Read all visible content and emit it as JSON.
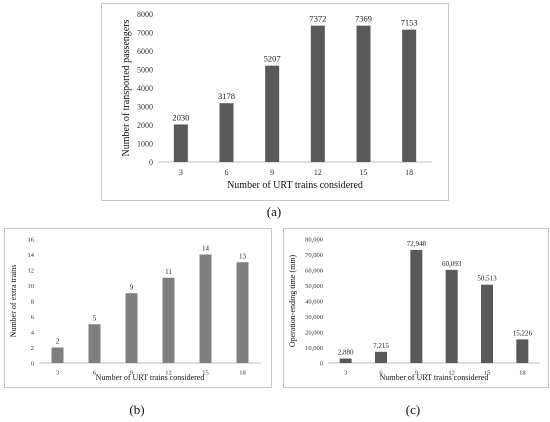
{
  "captions": [
    "(a)",
    "(b)",
    "(c)"
  ],
  "chart_data": [
    {
      "type": "bar",
      "categories": [
        "3",
        "6",
        "9",
        "12",
        "15",
        "18"
      ],
      "values": [
        2030,
        3178,
        5207,
        7372,
        7369,
        7153
      ],
      "data_labels": [
        "2030",
        "3178",
        "5207",
        "7372",
        "7369",
        "7153"
      ],
      "ylim": [
        0,
        8000
      ],
      "yticks": [
        "0",
        "1000",
        "2000",
        "3000",
        "4000",
        "5000",
        "6000",
        "7000",
        "8000"
      ],
      "xlabel": "Number of URT trains considered",
      "ylabel": "Number of transported passengers",
      "grid": false,
      "color": "#595959"
    },
    {
      "type": "bar",
      "categories": [
        "3",
        "6",
        "9",
        "12",
        "15",
        "18"
      ],
      "values": [
        2,
        5,
        9,
        11,
        14,
        13
      ],
      "data_labels": [
        "2",
        "5",
        "9",
        "11",
        "14",
        "13"
      ],
      "ylim": [
        0,
        16
      ],
      "yticks": [
        "0",
        "2",
        "4",
        "6",
        "8",
        "10",
        "12",
        "14",
        "16"
      ],
      "xlabel": "Number of URT trains considered",
      "ylabel": "Number of extra trains",
      "grid": false,
      "color": "#7f7f7f"
    },
    {
      "type": "bar",
      "categories": [
        "3",
        "6",
        "9",
        "12",
        "15",
        "18"
      ],
      "values": [
        2880,
        7215,
        72948,
        60093,
        50513,
        15226
      ],
      "data_labels": [
        "2,880",
        "7,215",
        "72,948",
        "60,093",
        "50,513",
        "15,226"
      ],
      "ylim": [
        0,
        80000
      ],
      "yticks": [
        "0",
        "10,000",
        "20,000",
        "30,000",
        "40,000",
        "50,000",
        "60,000",
        "70,000",
        "80,000"
      ],
      "xlabel": "Number of URT trains considered",
      "ylabel": "Operation-ending time (min)",
      "grid": false,
      "color": "#595959"
    }
  ]
}
